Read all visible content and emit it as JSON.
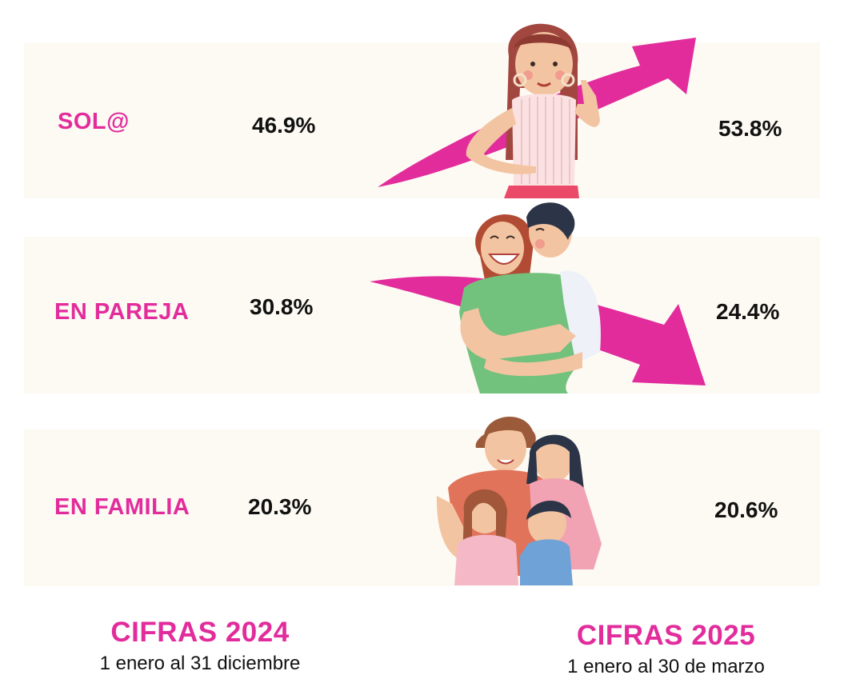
{
  "chart_data": {
    "type": "table",
    "periods": [
      {
        "title": "CIFRAS 2024",
        "range": "1 enero al 31 diciembre"
      },
      {
        "title": "CIFRAS 2025",
        "range": "1 enero al 30 de marzo"
      }
    ],
    "rows": [
      {
        "category": "SOL@",
        "v2024": "46.9%",
        "v2025": "53.8%",
        "trend": "up"
      },
      {
        "category": "EN PAREJA",
        "v2024": "30.8%",
        "v2025": "24.4%",
        "trend": "down"
      },
      {
        "category": "EN FAMILIA",
        "v2024": "20.3%",
        "v2025": "20.6%",
        "trend": "flat"
      }
    ]
  },
  "colors": {
    "accent": "#e22c9c",
    "row_bg": "#fdfaf3",
    "text": "#111111"
  },
  "illustrations": [
    "woman-pointing-up",
    "couple-hugging",
    "family-group"
  ]
}
